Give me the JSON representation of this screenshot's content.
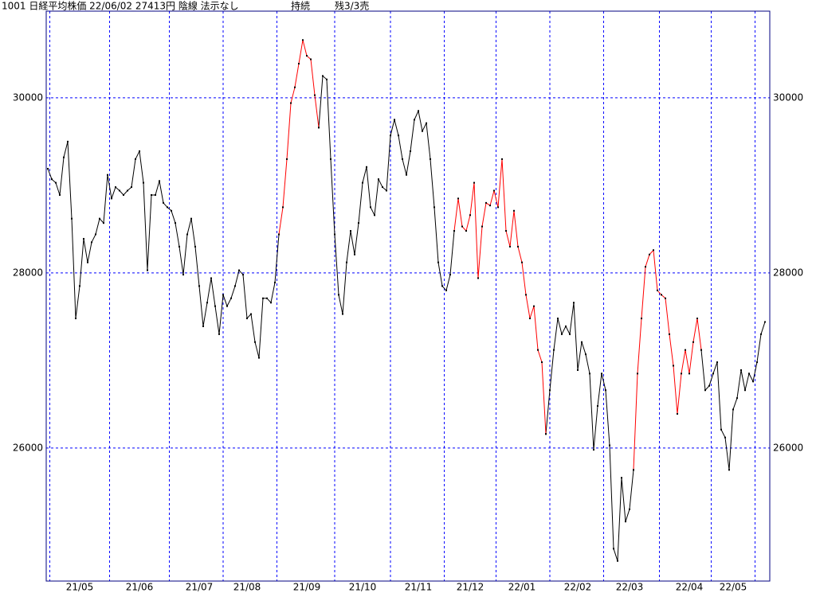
{
  "chart_data": {
    "type": "line",
    "title": "1001 日経平均株価 22/06/02 27413円 陰線 法示なし",
    "status": "持続",
    "position": "残3/3売",
    "ylim": [
      24480,
      30990
    ],
    "yticks": [
      26000,
      28000,
      30000
    ],
    "grid": true,
    "grid_color": "#0000ff",
    "frame_color": "#000080",
    "marker_color": "#000000",
    "categories": [
      null,
      null,
      null,
      null,
      null,
      null,
      null,
      null,
      "21/05",
      null,
      null,
      null,
      null,
      null,
      null,
      null,
      null,
      null,
      null,
      null,
      null,
      null,
      null,
      "21/06",
      null,
      null,
      null,
      null,
      null,
      null,
      null,
      null,
      null,
      null,
      null,
      null,
      null,
      null,
      "21/07",
      null,
      null,
      null,
      null,
      null,
      null,
      null,
      null,
      null,
      null,
      null,
      "21/08",
      null,
      null,
      null,
      null,
      null,
      null,
      null,
      null,
      null,
      null,
      null,
      null,
      null,
      null,
      "21/09",
      null,
      null,
      null,
      null,
      null,
      null,
      null,
      null,
      null,
      null,
      null,
      null,
      null,
      "21/10",
      null,
      null,
      null,
      null,
      null,
      null,
      null,
      null,
      null,
      null,
      null,
      null,
      null,
      "21/11",
      null,
      null,
      null,
      null,
      null,
      null,
      null,
      null,
      null,
      null,
      null,
      null,
      "21/12",
      null,
      null,
      null,
      null,
      null,
      null,
      null,
      null,
      null,
      null,
      null,
      null,
      "22/01",
      null,
      null,
      null,
      null,
      null,
      null,
      null,
      null,
      null,
      null,
      null,
      null,
      null,
      "22/02",
      null,
      null,
      null,
      null,
      null,
      null,
      null,
      null,
      null,
      null,
      null,
      null,
      "22/03",
      null,
      null,
      null,
      null,
      null,
      null,
      null,
      null,
      null,
      null,
      null,
      null,
      null,
      null,
      "22/04",
      null,
      null,
      null,
      null,
      null,
      null,
      null,
      null,
      null,
      null,
      "22/05",
      null,
      null,
      null,
      null,
      null,
      null,
      null,
      null
    ],
    "series": [
      {
        "color": "#000000",
        "values": [
          29190,
          29070,
          29030,
          28890,
          29320,
          29500,
          28620,
          27480,
          27850,
          28390,
          28120,
          28350,
          28440,
          28620,
          28570,
          29120,
          28850,
          28980,
          28940,
          28890,
          28940,
          28980,
          29300,
          29390,
          29030,
          28030,
          28890,
          28890,
          29050,
          28800,
          28750,
          28710,
          28570,
          28300,
          27980,
          28440,
          28620,
          28300,
          27850,
          27390,
          27660,
          27940,
          27620,
          27300,
          27750,
          27620,
          27710,
          27850,
          28030,
          27980,
          27480,
          27530,
          27210,
          27030,
          27710,
          27710,
          27660,
          27890,
          28440,
          null,
          null,
          null,
          null,
          null,
          null,
          null,
          null,
          null,
          29660,
          30250,
          30210,
          29300,
          28440,
          27750,
          27530,
          28120,
          28480,
          28210,
          28570,
          29030,
          29210,
          28750,
          28660,
          29070,
          28980,
          28940,
          29570,
          29750,
          29570,
          29300,
          29120,
          29390,
          29750,
          29850,
          29620,
          29710,
          29300,
          28750,
          28120,
          27850,
          27800,
          27980,
          28480,
          null,
          null,
          null,
          null,
          null,
          null,
          null,
          null,
          null,
          null,
          null,
          null,
          null,
          null,
          null,
          null,
          null,
          null,
          null,
          null,
          null,
          null,
          26160,
          26660,
          27120,
          27480,
          27300,
          27390,
          27300,
          27660,
          26890,
          27210,
          27070,
          26850,
          25980,
          26480,
          26850,
          26660,
          26030,
          24850,
          24710,
          25660,
          25160,
          25300,
          25750,
          null,
          null,
          null,
          null,
          null,
          null,
          null,
          null,
          null,
          null,
          null,
          null,
          null,
          null,
          null,
          null,
          27120,
          26660,
          26710,
          26850,
          26980,
          26210,
          26120,
          25750,
          26440,
          26570,
          26890,
          26660,
          26850,
          26760,
          26980,
          27300,
          27440
        ]
      },
      {
        "color": "#ff0000",
        "values": [
          null,
          null,
          null,
          null,
          null,
          null,
          null,
          null,
          null,
          null,
          null,
          null,
          null,
          null,
          null,
          null,
          null,
          null,
          null,
          null,
          null,
          null,
          null,
          null,
          null,
          null,
          null,
          null,
          null,
          null,
          null,
          null,
          null,
          null,
          null,
          null,
          null,
          null,
          null,
          null,
          null,
          null,
          null,
          null,
          null,
          null,
          null,
          null,
          null,
          null,
          null,
          null,
          null,
          null,
          null,
          null,
          null,
          null,
          28440,
          28750,
          29300,
          29940,
          30120,
          30390,
          30660,
          30480,
          30440,
          30030,
          29660,
          null,
          null,
          null,
          null,
          null,
          null,
          null,
          null,
          null,
          null,
          null,
          null,
          null,
          null,
          null,
          null,
          null,
          null,
          null,
          null,
          null,
          null,
          null,
          null,
          null,
          null,
          null,
          null,
          null,
          null,
          null,
          null,
          null,
          28480,
          28850,
          28530,
          28480,
          28660,
          29030,
          27940,
          28530,
          28800,
          28770,
          28940,
          28750,
          29300,
          28480,
          28300,
          28710,
          28300,
          28120,
          27750,
          27480,
          27620,
          27120,
          26980,
          26160,
          null,
          null,
          null,
          null,
          null,
          null,
          null,
          null,
          null,
          null,
          null,
          null,
          null,
          null,
          null,
          null,
          null,
          null,
          null,
          null,
          null,
          25750,
          26850,
          27480,
          28070,
          28210,
          28260,
          27800,
          27750,
          27710,
          27300,
          26940,
          26390,
          26850,
          27120,
          26850,
          27210,
          27480,
          27120,
          null,
          null,
          null,
          null,
          null,
          null,
          null,
          null,
          null,
          null,
          null,
          null,
          null,
          null,
          null,
          null
        ]
      }
    ]
  }
}
